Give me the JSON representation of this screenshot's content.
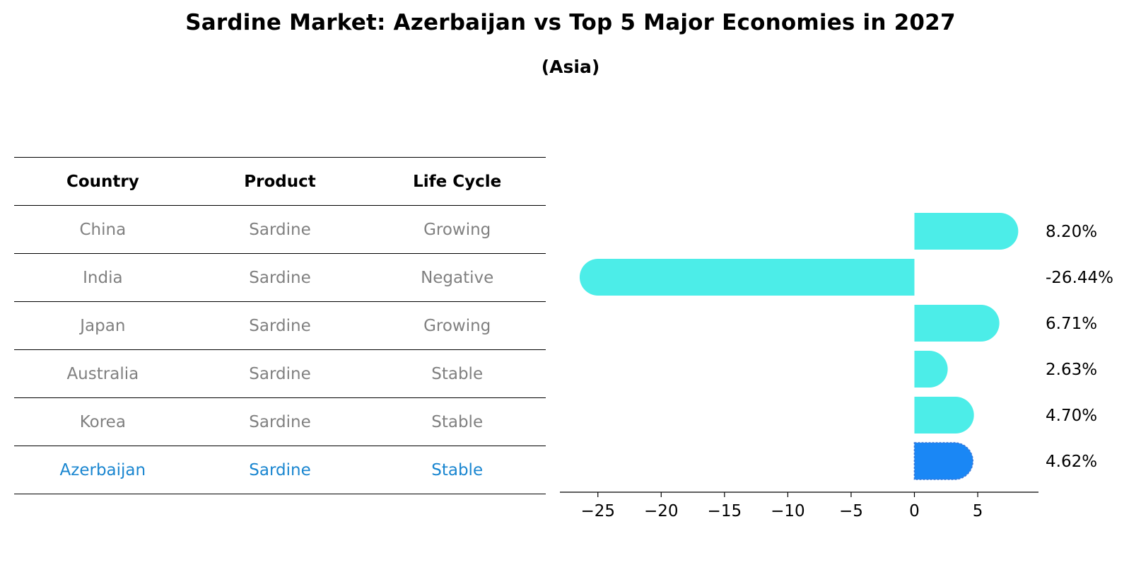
{
  "title": "Sardine Market: Azerbaijan vs Top 5 Major Economies in 2027",
  "subtitle": "(Asia)",
  "table": {
    "headers": [
      "Country",
      "Product",
      "Life Cycle"
    ],
    "rows": [
      [
        "China",
        "Sardine",
        "Growing"
      ],
      [
        "India",
        "Sardine",
        "Negative"
      ],
      [
        "Japan",
        "Sardine",
        "Growing"
      ],
      [
        "Australia",
        "Sardine",
        "Stable"
      ],
      [
        "Korea",
        "Sardine",
        "Stable"
      ],
      [
        "Azerbaijan",
        "Sardine",
        "Stable"
      ]
    ]
  },
  "colors": {
    "bar": "#4cede8",
    "highlight_bar": "#1a87f5",
    "highlight_text": "#1a86d0",
    "muted_text": "#808080"
  },
  "chart_data": {
    "type": "bar",
    "orientation": "horizontal",
    "categories": [
      "China",
      "India",
      "Japan",
      "Australia",
      "Korea",
      "Azerbaijan"
    ],
    "values": [
      8.2,
      -26.44,
      6.71,
      2.63,
      4.7,
      4.62
    ],
    "labels": [
      "8.20%",
      "-26.44%",
      "6.71%",
      "2.63%",
      "4.70%",
      "4.62%"
    ],
    "highlight": "Azerbaijan",
    "xlim": [
      -28,
      9.8
    ],
    "xticks": [
      -25,
      -20,
      -15,
      -10,
      -5,
      0,
      5
    ],
    "xtick_labels": [
      "−25",
      "−20",
      "−15",
      "−10",
      "−5",
      "0",
      "5"
    ],
    "grid": false
  }
}
